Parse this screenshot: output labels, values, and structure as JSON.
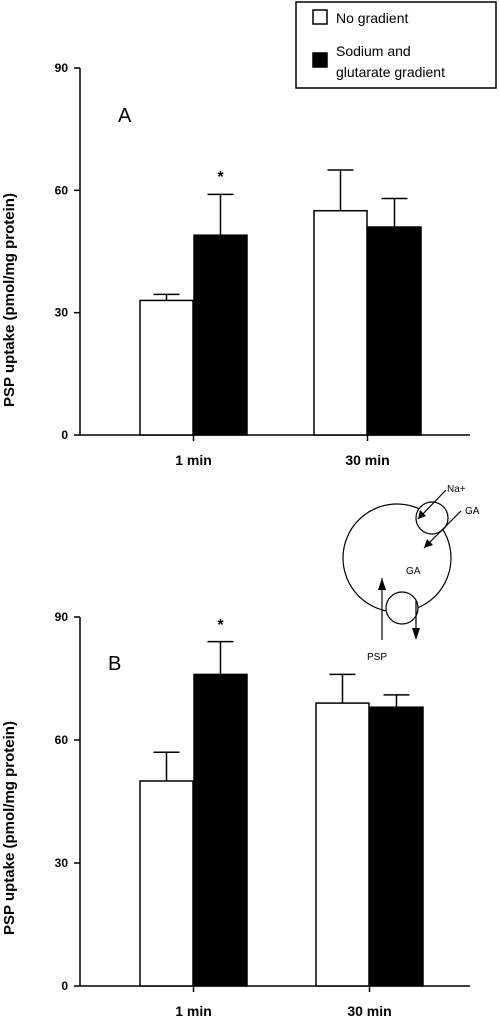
{
  "legend": {
    "items": [
      {
        "label": "No gradient",
        "color": "#ffffff"
      },
      {
        "label": "Sodium and",
        "label2": "glutarate gradient",
        "color": "#000000"
      }
    ]
  },
  "diagram": {
    "na_label": "Na+",
    "ga_label_top": "GA",
    "ga_label_mid": "GA",
    "psp_label": "PSP"
  },
  "chart_data": [
    {
      "type": "bar",
      "panel": "A",
      "ylabel": "PSP uptake (pmol/mg protein)",
      "ylim": [
        0,
        90
      ],
      "yticks": [
        "0",
        "30",
        "60",
        "90"
      ],
      "categories": [
        "1 min",
        "30 min"
      ],
      "series": [
        {
          "name": "No gradient",
          "color": "#ffffff",
          "values": [
            33,
            55
          ],
          "errors": [
            1.5,
            10
          ]
        },
        {
          "name": "Sodium and glutarate gradient",
          "color": "#000000",
          "values": [
            49,
            51
          ],
          "errors": [
            10,
            7
          ]
        }
      ],
      "annotations": [
        {
          "text": "*",
          "category": 0
        }
      ]
    },
    {
      "type": "bar",
      "panel": "B",
      "ylabel": "PSP uptake (pmol/mg protein)",
      "ylim": [
        0,
        90
      ],
      "yticks": [
        "0",
        "30",
        "60",
        "90"
      ],
      "categories": [
        "1 min",
        "30 min"
      ],
      "series": [
        {
          "name": "No gradient",
          "color": "#ffffff",
          "values": [
            50,
            69
          ],
          "errors": [
            7,
            7
          ]
        },
        {
          "name": "Sodium and glutarate gradient",
          "color": "#000000",
          "values": [
            76,
            68
          ],
          "errors": [
            8,
            3
          ]
        }
      ],
      "annotations": [
        {
          "text": "*",
          "category": 0
        }
      ]
    }
  ]
}
